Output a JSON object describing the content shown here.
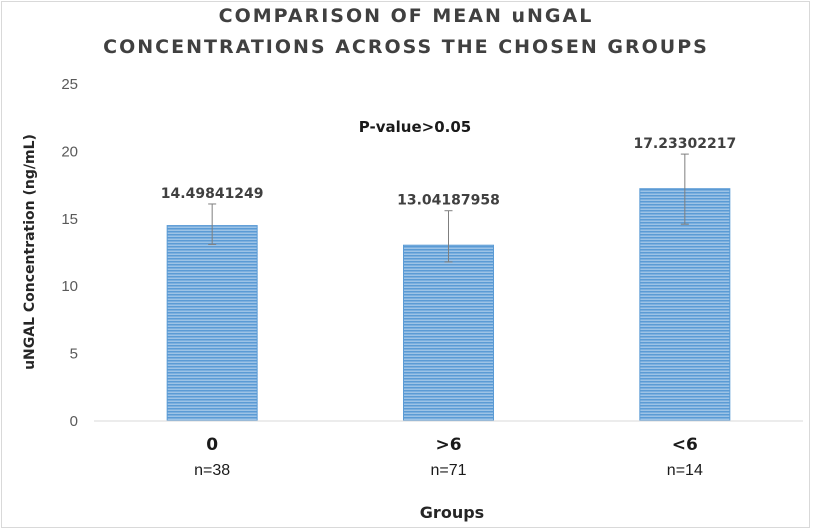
{
  "chart_data": {
    "type": "bar",
    "title_lines": [
      "COMPARISON OF MEAN uNGAL",
      "CONCENTRATIONS ACROSS THE CHOSEN GROUPS"
    ],
    "xlabel": "Groups",
    "ylabel": "uNGAL Concentration (ng/mL)",
    "categories": [
      "0",
      ">6",
      "<6"
    ],
    "sample_sizes": [
      "n=38",
      "n=71",
      "n=14"
    ],
    "values": [
      14.49841249,
      13.04187958,
      17.23302217
    ],
    "value_labels": [
      "14.49841249",
      "13.04187958",
      "17.23302217"
    ],
    "error_low": [
      13.1,
      11.8,
      14.6
    ],
    "error_high": [
      16.1,
      15.6,
      19.8
    ],
    "ylim": [
      0,
      25
    ],
    "yticks": [
      0,
      5,
      10,
      15,
      20,
      25
    ],
    "ytick_labels": [
      "0",
      "5",
      "10",
      "15",
      "20",
      "25"
    ],
    "annotation": "P-value>0.05",
    "grid": false,
    "bar_color": "#5b9bd5"
  }
}
